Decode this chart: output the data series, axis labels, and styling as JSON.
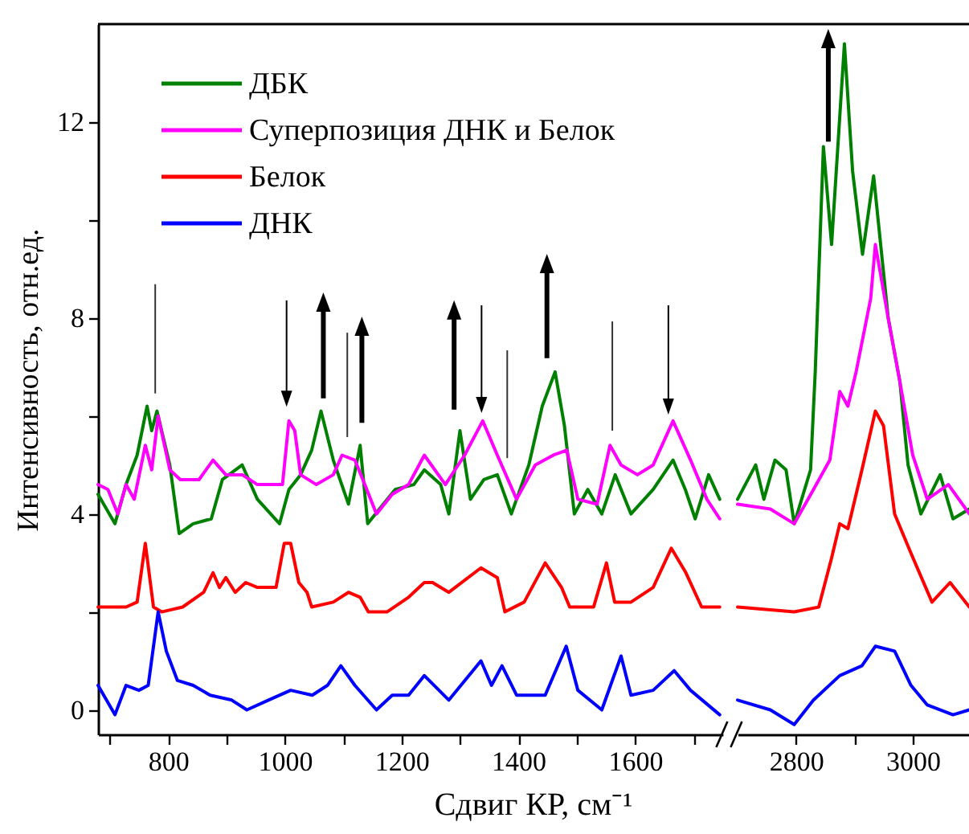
{
  "chart_data": [
    {
      "type": "line",
      "ylabel": "Интенсивность, отн.ед.",
      "xlabel": "Сдвиг КР, см⁻¹",
      "legend": "top left",
      "xlim": [
        680,
        1750
      ],
      "xticks": [
        {
          "value": 700,
          "label": null
        },
        800,
        {
          "value": 900,
          "label": null
        },
        1000,
        {
          "value": 1100,
          "label": null
        },
        1200,
        {
          "value": 1300,
          "label": null
        },
        1400,
        {
          "value": 1500,
          "label": null
        },
        1600,
        {
          "value": 1700,
          "label": null
        }
      ],
      "ylim": [
        -0.5,
        14
      ],
      "yticks": [
        0,
        {
          "value": 2,
          "label": null
        },
        4,
        {
          "value": 6,
          "label": null
        },
        8,
        {
          "value": 10,
          "label": null
        },
        12
      ],
      "series": [
        {
          "name": "ДБК",
          "color": "#008000",
          "x": [
            680,
            709,
            728,
            747,
            764,
            772,
            781,
            803,
            819,
            843,
            874,
            893,
            927,
            953,
            991,
            1007,
            1027,
            1046,
            1062,
            1083,
            1109,
            1129,
            1142,
            1162,
            1189,
            1221,
            1239,
            1267,
            1281,
            1300,
            1318,
            1341,
            1364,
            1388,
            1418,
            1441,
            1463,
            1479,
            1496,
            1519,
            1543,
            1566,
            1593,
            1631,
            1665,
            1686,
            1703,
            1726,
            1745
          ],
          "values": [
            4.4,
            3.8,
            4.6,
            5.2,
            6.2,
            5.7,
            6.1,
            5.0,
            3.6,
            3.8,
            3.9,
            4.7,
            5.0,
            4.3,
            3.8,
            4.5,
            4.8,
            5.3,
            6.1,
            5.1,
            4.2,
            5.4,
            3.8,
            4.1,
            4.5,
            4.6,
            4.9,
            4.6,
            4.0,
            5.7,
            4.3,
            4.7,
            4.8,
            4.0,
            5.0,
            6.2,
            6.9,
            5.8,
            4.0,
            4.5,
            4.0,
            4.8,
            4.0,
            4.5,
            5.1,
            4.5,
            3.9,
            4.8,
            4.3
          ]
        },
        {
          "name": "Суперпозиция ДНК и Белок",
          "color": "#ff00ff",
          "x": [
            680,
            697,
            714,
            728,
            742,
            761,
            772,
            783,
            803,
            821,
            853,
            877,
            899,
            927,
            953,
            996,
            1007,
            1017,
            1027,
            1054,
            1083,
            1098,
            1120,
            1137,
            1157,
            1184,
            1212,
            1239,
            1275,
            1308,
            1339,
            1364,
            1397,
            1429,
            1460,
            1483,
            1502,
            1535,
            1557,
            1576,
            1604,
            1631,
            1665,
            1695,
            1723,
            1745
          ],
          "values": [
            4.6,
            4.5,
            4.0,
            4.6,
            4.3,
            5.4,
            4.9,
            6.0,
            4.9,
            4.7,
            4.7,
            5.1,
            4.8,
            4.8,
            4.6,
            4.6,
            5.9,
            5.7,
            4.8,
            4.6,
            4.8,
            5.2,
            5.1,
            4.6,
            4.0,
            4.4,
            4.6,
            5.2,
            4.6,
            5.2,
            5.9,
            5.2,
            4.3,
            5.0,
            5.2,
            5.3,
            4.3,
            4.2,
            5.4,
            5.0,
            4.8,
            5.0,
            5.9,
            5.1,
            4.3,
            3.9
          ]
        },
        {
          "name": "Белок",
          "color": "#ff0000",
          "x": [
            680,
            728,
            747,
            761,
            775,
            789,
            825,
            861,
            877,
            888,
            899,
            915,
            933,
            953,
            985,
            999,
            1010,
            1024,
            1038,
            1046,
            1083,
            1109,
            1129,
            1143,
            1175,
            1212,
            1239,
            1253,
            1281,
            1336,
            1364,
            1377,
            1410,
            1446,
            1474,
            1488,
            1529,
            1551,
            1565,
            1593,
            1631,
            1662,
            1687,
            1714,
            1745
          ],
          "values": [
            2.1,
            2.1,
            2.2,
            3.4,
            2.1,
            2.0,
            2.1,
            2.4,
            2.8,
            2.5,
            2.7,
            2.4,
            2.6,
            2.5,
            2.5,
            3.4,
            3.4,
            2.6,
            2.4,
            2.1,
            2.2,
            2.4,
            2.3,
            2.0,
            2.0,
            2.3,
            2.6,
            2.6,
            2.4,
            2.9,
            2.7,
            2.0,
            2.2,
            3.0,
            2.5,
            2.1,
            2.1,
            3.0,
            2.2,
            2.2,
            2.5,
            3.3,
            2.8,
            2.1,
            2.1
          ]
        },
        {
          "name": "ДНК",
          "color": "#0000ff",
          "x": [
            680,
            709,
            728,
            750,
            766,
            783,
            797,
            816,
            843,
            872,
            909,
            935,
            972,
            1010,
            1047,
            1073,
            1096,
            1120,
            1157,
            1184,
            1212,
            1239,
            1281,
            1336,
            1354,
            1372,
            1397,
            1446,
            1482,
            1502,
            1543,
            1576,
            1593,
            1631,
            1667,
            1695,
            1745
          ],
          "values": [
            0.5,
            -0.1,
            0.5,
            0.4,
            0.5,
            2.0,
            1.2,
            0.6,
            0.5,
            0.3,
            0.2,
            0.0,
            0.2,
            0.4,
            0.3,
            0.5,
            0.9,
            0.5,
            0.0,
            0.3,
            0.3,
            0.7,
            0.2,
            1.0,
            0.5,
            0.9,
            0.3,
            0.3,
            1.3,
            0.4,
            0.0,
            1.1,
            0.3,
            0.4,
            0.8,
            0.4,
            -0.1
          ]
        }
      ]
    },
    {
      "type": "line",
      "tick_labels": "x",
      "xlim": [
        2700,
        3100
      ],
      "xticks": [
        2800,
        {
          "value": 2900,
          "label": null
        },
        3000
      ],
      "ylim": [
        -0.5,
        14
      ],
      "series": [
        {
          "color": "#008000",
          "x": [
            2700,
            2731,
            2745,
            2764,
            2783,
            2797,
            2825,
            2833,
            2847,
            2861,
            2883,
            2897,
            2914,
            2933,
            2958,
            2978,
            2992,
            3014,
            3047,
            3069,
            3097
          ],
          "values": [
            4.3,
            5.0,
            4.3,
            5.1,
            4.9,
            3.8,
            4.9,
            6.9,
            11.5,
            9.5,
            13.6,
            11.0,
            9.3,
            10.9,
            8.0,
            6.7,
            5.0,
            4.0,
            4.8,
            3.9,
            4.1
          ]
        },
        {
          "color": "#ff00ff",
          "x": [
            2700,
            2756,
            2797,
            2830,
            2858,
            2875,
            2889,
            2903,
            2928,
            2936,
            2958,
            2978,
            3000,
            3025,
            3061,
            3097
          ],
          "values": [
            4.2,
            4.1,
            3.8,
            4.5,
            5.1,
            6.5,
            6.2,
            6.9,
            8.4,
            9.5,
            8.0,
            6.7,
            5.2,
            4.3,
            4.6,
            4.0
          ]
        },
        {
          "color": "#ff0000",
          "x": [
            2700,
            2797,
            2839,
            2861,
            2875,
            2889,
            2913,
            2936,
            2950,
            2969,
            2997,
            3033,
            3064,
            3097
          ],
          "values": [
            2.1,
            2.0,
            2.1,
            3.1,
            3.8,
            3.7,
            4.9,
            6.1,
            5.8,
            4.0,
            3.2,
            2.2,
            2.6,
            2.1
          ]
        },
        {
          "color": "#0000ff",
          "x": [
            2700,
            2756,
            2797,
            2830,
            2875,
            2913,
            2936,
            2969,
            2997,
            3025,
            3069,
            3097
          ],
          "values": [
            0.2,
            0.0,
            -0.3,
            0.2,
            0.7,
            0.9,
            1.3,
            1.2,
            0.5,
            0.1,
            -0.1,
            0.0
          ]
        }
      ]
    }
  ]
}
